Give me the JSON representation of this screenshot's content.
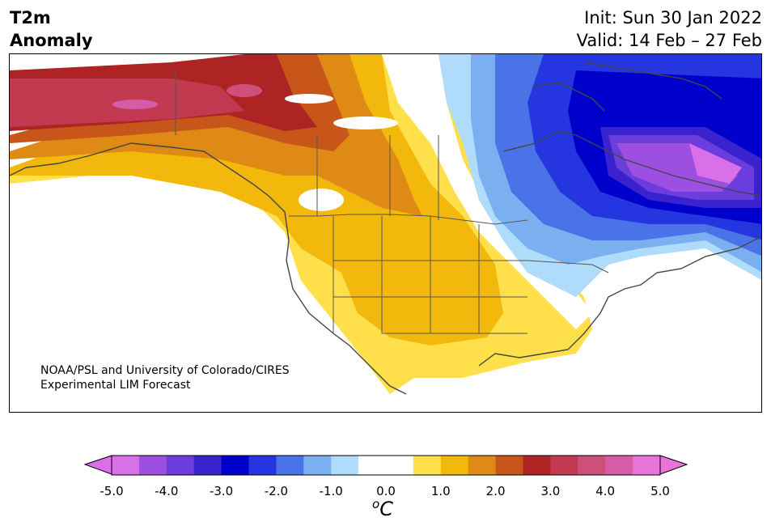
{
  "header": {
    "title_line1": "T2m",
    "title_line2": "Anomaly",
    "init": "Init: Sun 30 Jan 2022",
    "valid": "Valid: 14 Feb – 27 Feb"
  },
  "map": {
    "region": "North America",
    "variable": "T2m Anomaly",
    "credit_line1": "NOAA/PSL and University of Colorado/CIRES",
    "credit_line2": "Experimental LIM Forecast"
  },
  "colorbar": {
    "ticks": [
      "-5.0",
      "-4.0",
      "-3.0",
      "-2.0",
      "-1.0",
      "0.0",
      "1.0",
      "2.0",
      "3.0",
      "4.0",
      "5.0"
    ],
    "unit_symbol": "o",
    "unit_letter": "C",
    "colors": [
      "#da70e8",
      "#9c4fe0",
      "#6a3ddc",
      "#3a22cf",
      "#0000cd",
      "#2536e0",
      "#4b73e8",
      "#7ab0f0",
      "#aedcfa",
      "#ffffff",
      "#ffffff",
      "#ffe04a",
      "#f3b80c",
      "#df8a14",
      "#c8561a",
      "#ae2424",
      "#c23a50",
      "#cd507a",
      "#d75ca8",
      "#e874da"
    ]
  }
}
